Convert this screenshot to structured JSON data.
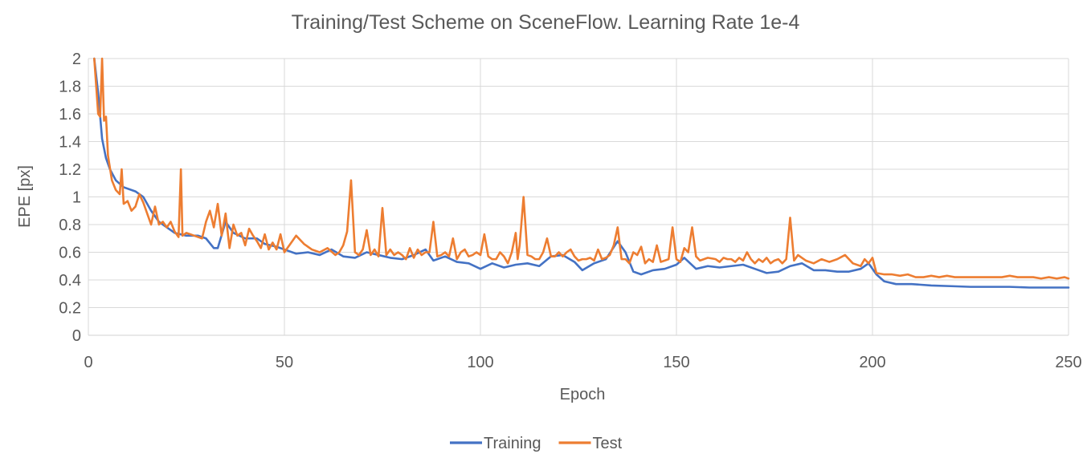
{
  "chart_data": {
    "type": "line",
    "title": "Training/Test Scheme on SceneFlow. Learning Rate 1e-4",
    "xlabel": "Epoch",
    "ylabel": "EPE [px]",
    "xlim": [
      0,
      250
    ],
    "ylim": [
      0,
      2
    ],
    "x_ticks": [
      "0",
      "50",
      "100",
      "150",
      "200",
      "250"
    ],
    "y_ticks": [
      "0",
      "0.2",
      "0.4",
      "0.6",
      "0.8",
      "1",
      "1.2",
      "1.4",
      "1.6",
      "1.8",
      "2"
    ],
    "grid": true,
    "legend_position": "bottom",
    "series": [
      {
        "name": "Training",
        "color": "#4472c4",
        "points": [
          [
            1.5,
            2.0
          ],
          [
            2.5,
            1.75
          ],
          [
            3.5,
            1.42
          ],
          [
            4.5,
            1.28
          ],
          [
            5.5,
            1.2
          ],
          [
            7,
            1.12
          ],
          [
            9,
            1.07
          ],
          [
            12,
            1.04
          ],
          [
            14,
            1.0
          ],
          [
            16,
            0.9
          ],
          [
            18,
            0.82
          ],
          [
            20,
            0.78
          ],
          [
            22,
            0.74
          ],
          [
            25,
            0.72
          ],
          [
            28,
            0.72
          ],
          [
            30,
            0.7
          ],
          [
            32,
            0.63
          ],
          [
            33,
            0.63
          ],
          [
            35,
            0.82
          ],
          [
            37,
            0.74
          ],
          [
            40,
            0.7
          ],
          [
            43,
            0.7
          ],
          [
            45,
            0.66
          ],
          [
            48,
            0.64
          ],
          [
            50,
            0.62
          ],
          [
            53,
            0.59
          ],
          [
            56,
            0.6
          ],
          [
            59,
            0.58
          ],
          [
            62,
            0.62
          ],
          [
            65,
            0.57
          ],
          [
            68,
            0.56
          ],
          [
            71,
            0.6
          ],
          [
            74,
            0.58
          ],
          [
            77,
            0.56
          ],
          [
            80,
            0.55
          ],
          [
            83,
            0.58
          ],
          [
            86,
            0.62
          ],
          [
            88,
            0.54
          ],
          [
            91,
            0.57
          ],
          [
            94,
            0.53
          ],
          [
            97,
            0.52
          ],
          [
            100,
            0.48
          ],
          [
            103,
            0.52
          ],
          [
            106,
            0.49
          ],
          [
            109,
            0.51
          ],
          [
            112,
            0.52
          ],
          [
            115,
            0.5
          ],
          [
            118,
            0.57
          ],
          [
            121,
            0.58
          ],
          [
            124,
            0.53
          ],
          [
            126,
            0.47
          ],
          [
            129,
            0.52
          ],
          [
            132,
            0.55
          ],
          [
            135,
            0.68
          ],
          [
            137,
            0.6
          ],
          [
            139,
            0.46
          ],
          [
            141,
            0.44
          ],
          [
            144,
            0.47
          ],
          [
            147,
            0.48
          ],
          [
            150,
            0.51
          ],
          [
            152,
            0.56
          ],
          [
            155,
            0.48
          ],
          [
            158,
            0.5
          ],
          [
            161,
            0.49
          ],
          [
            164,
            0.5
          ],
          [
            167,
            0.51
          ],
          [
            170,
            0.48
          ],
          [
            173,
            0.45
          ],
          [
            176,
            0.46
          ],
          [
            179,
            0.5
          ],
          [
            182,
            0.52
          ],
          [
            185,
            0.47
          ],
          [
            188,
            0.47
          ],
          [
            191,
            0.46
          ],
          [
            194,
            0.46
          ],
          [
            197,
            0.48
          ],
          [
            199,
            0.52
          ],
          [
            201,
            0.44
          ],
          [
            203,
            0.39
          ],
          [
            206,
            0.37
          ],
          [
            210,
            0.37
          ],
          [
            215,
            0.36
          ],
          [
            220,
            0.355
          ],
          [
            225,
            0.35
          ],
          [
            230,
            0.35
          ],
          [
            235,
            0.35
          ],
          [
            240,
            0.345
          ],
          [
            245,
            0.345
          ],
          [
            250,
            0.345
          ]
        ]
      },
      {
        "name": "Test",
        "color": "#ed7d31",
        "points": [
          [
            1.5,
            2.0
          ],
          [
            2,
            1.8
          ],
          [
            2.5,
            1.6
          ],
          [
            3,
            1.58
          ],
          [
            3.5,
            2.0
          ],
          [
            4,
            1.55
          ],
          [
            4.5,
            1.58
          ],
          [
            5,
            1.3
          ],
          [
            6,
            1.12
          ],
          [
            7,
            1.05
          ],
          [
            8,
            1.02
          ],
          [
            8.5,
            1.2
          ],
          [
            9,
            0.95
          ],
          [
            10,
            0.97
          ],
          [
            11,
            0.9
          ],
          [
            12,
            0.93
          ],
          [
            13,
            1.02
          ],
          [
            14,
            0.96
          ],
          [
            15,
            0.88
          ],
          [
            16,
            0.8
          ],
          [
            17,
            0.93
          ],
          [
            18,
            0.8
          ],
          [
            19,
            0.82
          ],
          [
            20,
            0.78
          ],
          [
            21,
            0.82
          ],
          [
            22,
            0.75
          ],
          [
            23,
            0.71
          ],
          [
            23.6,
            1.2
          ],
          [
            24,
            0.72
          ],
          [
            25,
            0.74
          ],
          [
            27,
            0.72
          ],
          [
            29,
            0.7
          ],
          [
            30,
            0.82
          ],
          [
            31,
            0.9
          ],
          [
            32,
            0.78
          ],
          [
            33,
            0.95
          ],
          [
            34,
            0.72
          ],
          [
            35,
            0.88
          ],
          [
            36,
            0.63
          ],
          [
            37,
            0.8
          ],
          [
            38,
            0.72
          ],
          [
            39,
            0.74
          ],
          [
            40,
            0.65
          ],
          [
            41,
            0.77
          ],
          [
            42,
            0.72
          ],
          [
            43,
            0.68
          ],
          [
            44,
            0.63
          ],
          [
            45,
            0.73
          ],
          [
            46,
            0.62
          ],
          [
            47,
            0.67
          ],
          [
            48,
            0.62
          ],
          [
            49,
            0.73
          ],
          [
            50,
            0.6
          ],
          [
            52,
            0.68
          ],
          [
            53,
            0.72
          ],
          [
            55,
            0.66
          ],
          [
            57,
            0.62
          ],
          [
            59,
            0.6
          ],
          [
            61,
            0.63
          ],
          [
            63,
            0.58
          ],
          [
            64,
            0.6
          ],
          [
            65,
            0.65
          ],
          [
            66,
            0.75
          ],
          [
            67,
            1.12
          ],
          [
            68,
            0.6
          ],
          [
            69,
            0.58
          ],
          [
            70,
            0.62
          ],
          [
            71,
            0.76
          ],
          [
            72,
            0.58
          ],
          [
            73,
            0.62
          ],
          [
            74,
            0.57
          ],
          [
            75,
            0.92
          ],
          [
            76,
            0.58
          ],
          [
            77,
            0.62
          ],
          [
            78,
            0.58
          ],
          [
            79,
            0.6
          ],
          [
            80,
            0.58
          ],
          [
            81,
            0.55
          ],
          [
            82,
            0.63
          ],
          [
            83,
            0.56
          ],
          [
            84,
            0.62
          ],
          [
            85,
            0.58
          ],
          [
            86,
            0.6
          ],
          [
            87,
            0.6
          ],
          [
            88,
            0.82
          ],
          [
            89,
            0.57
          ],
          [
            90,
            0.58
          ],
          [
            91,
            0.6
          ],
          [
            92,
            0.57
          ],
          [
            93,
            0.7
          ],
          [
            94,
            0.55
          ],
          [
            95,
            0.6
          ],
          [
            96,
            0.62
          ],
          [
            97,
            0.57
          ],
          [
            98,
            0.58
          ],
          [
            99,
            0.6
          ],
          [
            100,
            0.58
          ],
          [
            101,
            0.73
          ],
          [
            102,
            0.57
          ],
          [
            103,
            0.55
          ],
          [
            104,
            0.55
          ],
          [
            105,
            0.6
          ],
          [
            106,
            0.57
          ],
          [
            107,
            0.52
          ],
          [
            108,
            0.6
          ],
          [
            109,
            0.74
          ],
          [
            109.5,
            0.55
          ],
          [
            110,
            0.65
          ],
          [
            111,
            1.0
          ],
          [
            112,
            0.58
          ],
          [
            113,
            0.57
          ],
          [
            114,
            0.55
          ],
          [
            115,
            0.55
          ],
          [
            116,
            0.6
          ],
          [
            117,
            0.7
          ],
          [
            118,
            0.57
          ],
          [
            119,
            0.57
          ],
          [
            120,
            0.6
          ],
          [
            121,
            0.57
          ],
          [
            122,
            0.6
          ],
          [
            123,
            0.62
          ],
          [
            124,
            0.57
          ],
          [
            125,
            0.54
          ],
          [
            126,
            0.55
          ],
          [
            127,
            0.55
          ],
          [
            128,
            0.56
          ],
          [
            129,
            0.54
          ],
          [
            130,
            0.62
          ],
          [
            131,
            0.55
          ],
          [
            132,
            0.56
          ],
          [
            133,
            0.58
          ],
          [
            134,
            0.65
          ],
          [
            135,
            0.78
          ],
          [
            136,
            0.55
          ],
          [
            137,
            0.55
          ],
          [
            138,
            0.52
          ],
          [
            139,
            0.6
          ],
          [
            140,
            0.58
          ],
          [
            141,
            0.64
          ],
          [
            142,
            0.52
          ],
          [
            143,
            0.55
          ],
          [
            144,
            0.53
          ],
          [
            145,
            0.65
          ],
          [
            146,
            0.53
          ],
          [
            147,
            0.54
          ],
          [
            148,
            0.55
          ],
          [
            149,
            0.78
          ],
          [
            150,
            0.55
          ],
          [
            151,
            0.53
          ],
          [
            152,
            0.63
          ],
          [
            153,
            0.6
          ],
          [
            154,
            0.78
          ],
          [
            155,
            0.57
          ],
          [
            156,
            0.54
          ],
          [
            157,
            0.55
          ],
          [
            158,
            0.56
          ],
          [
            160,
            0.55
          ],
          [
            161,
            0.53
          ],
          [
            162,
            0.56
          ],
          [
            163,
            0.55
          ],
          [
            164,
            0.55
          ],
          [
            165,
            0.53
          ],
          [
            166,
            0.56
          ],
          [
            167,
            0.54
          ],
          [
            168,
            0.6
          ],
          [
            169,
            0.55
          ],
          [
            170,
            0.52
          ],
          [
            171,
            0.55
          ],
          [
            172,
            0.53
          ],
          [
            173,
            0.56
          ],
          [
            174,
            0.52
          ],
          [
            175,
            0.54
          ],
          [
            176,
            0.55
          ],
          [
            177,
            0.52
          ],
          [
            178,
            0.55
          ],
          [
            179,
            0.85
          ],
          [
            180,
            0.54
          ],
          [
            181,
            0.58
          ],
          [
            182,
            0.56
          ],
          [
            183,
            0.54
          ],
          [
            185,
            0.52
          ],
          [
            187,
            0.55
          ],
          [
            189,
            0.53
          ],
          [
            191,
            0.55
          ],
          [
            193,
            0.58
          ],
          [
            195,
            0.52
          ],
          [
            197,
            0.5
          ],
          [
            198,
            0.55
          ],
          [
            199,
            0.52
          ],
          [
            200,
            0.56
          ],
          [
            201,
            0.45
          ],
          [
            203,
            0.44
          ],
          [
            205,
            0.44
          ],
          [
            207,
            0.43
          ],
          [
            209,
            0.44
          ],
          [
            211,
            0.42
          ],
          [
            213,
            0.42
          ],
          [
            215,
            0.43
          ],
          [
            217,
            0.42
          ],
          [
            219,
            0.43
          ],
          [
            221,
            0.42
          ],
          [
            223,
            0.42
          ],
          [
            225,
            0.42
          ],
          [
            227,
            0.42
          ],
          [
            229,
            0.42
          ],
          [
            231,
            0.42
          ],
          [
            233,
            0.42
          ],
          [
            235,
            0.43
          ],
          [
            237,
            0.42
          ],
          [
            239,
            0.42
          ],
          [
            241,
            0.42
          ],
          [
            243,
            0.41
          ],
          [
            245,
            0.42
          ],
          [
            247,
            0.41
          ],
          [
            249,
            0.42
          ],
          [
            250,
            0.41
          ]
        ]
      }
    ]
  }
}
